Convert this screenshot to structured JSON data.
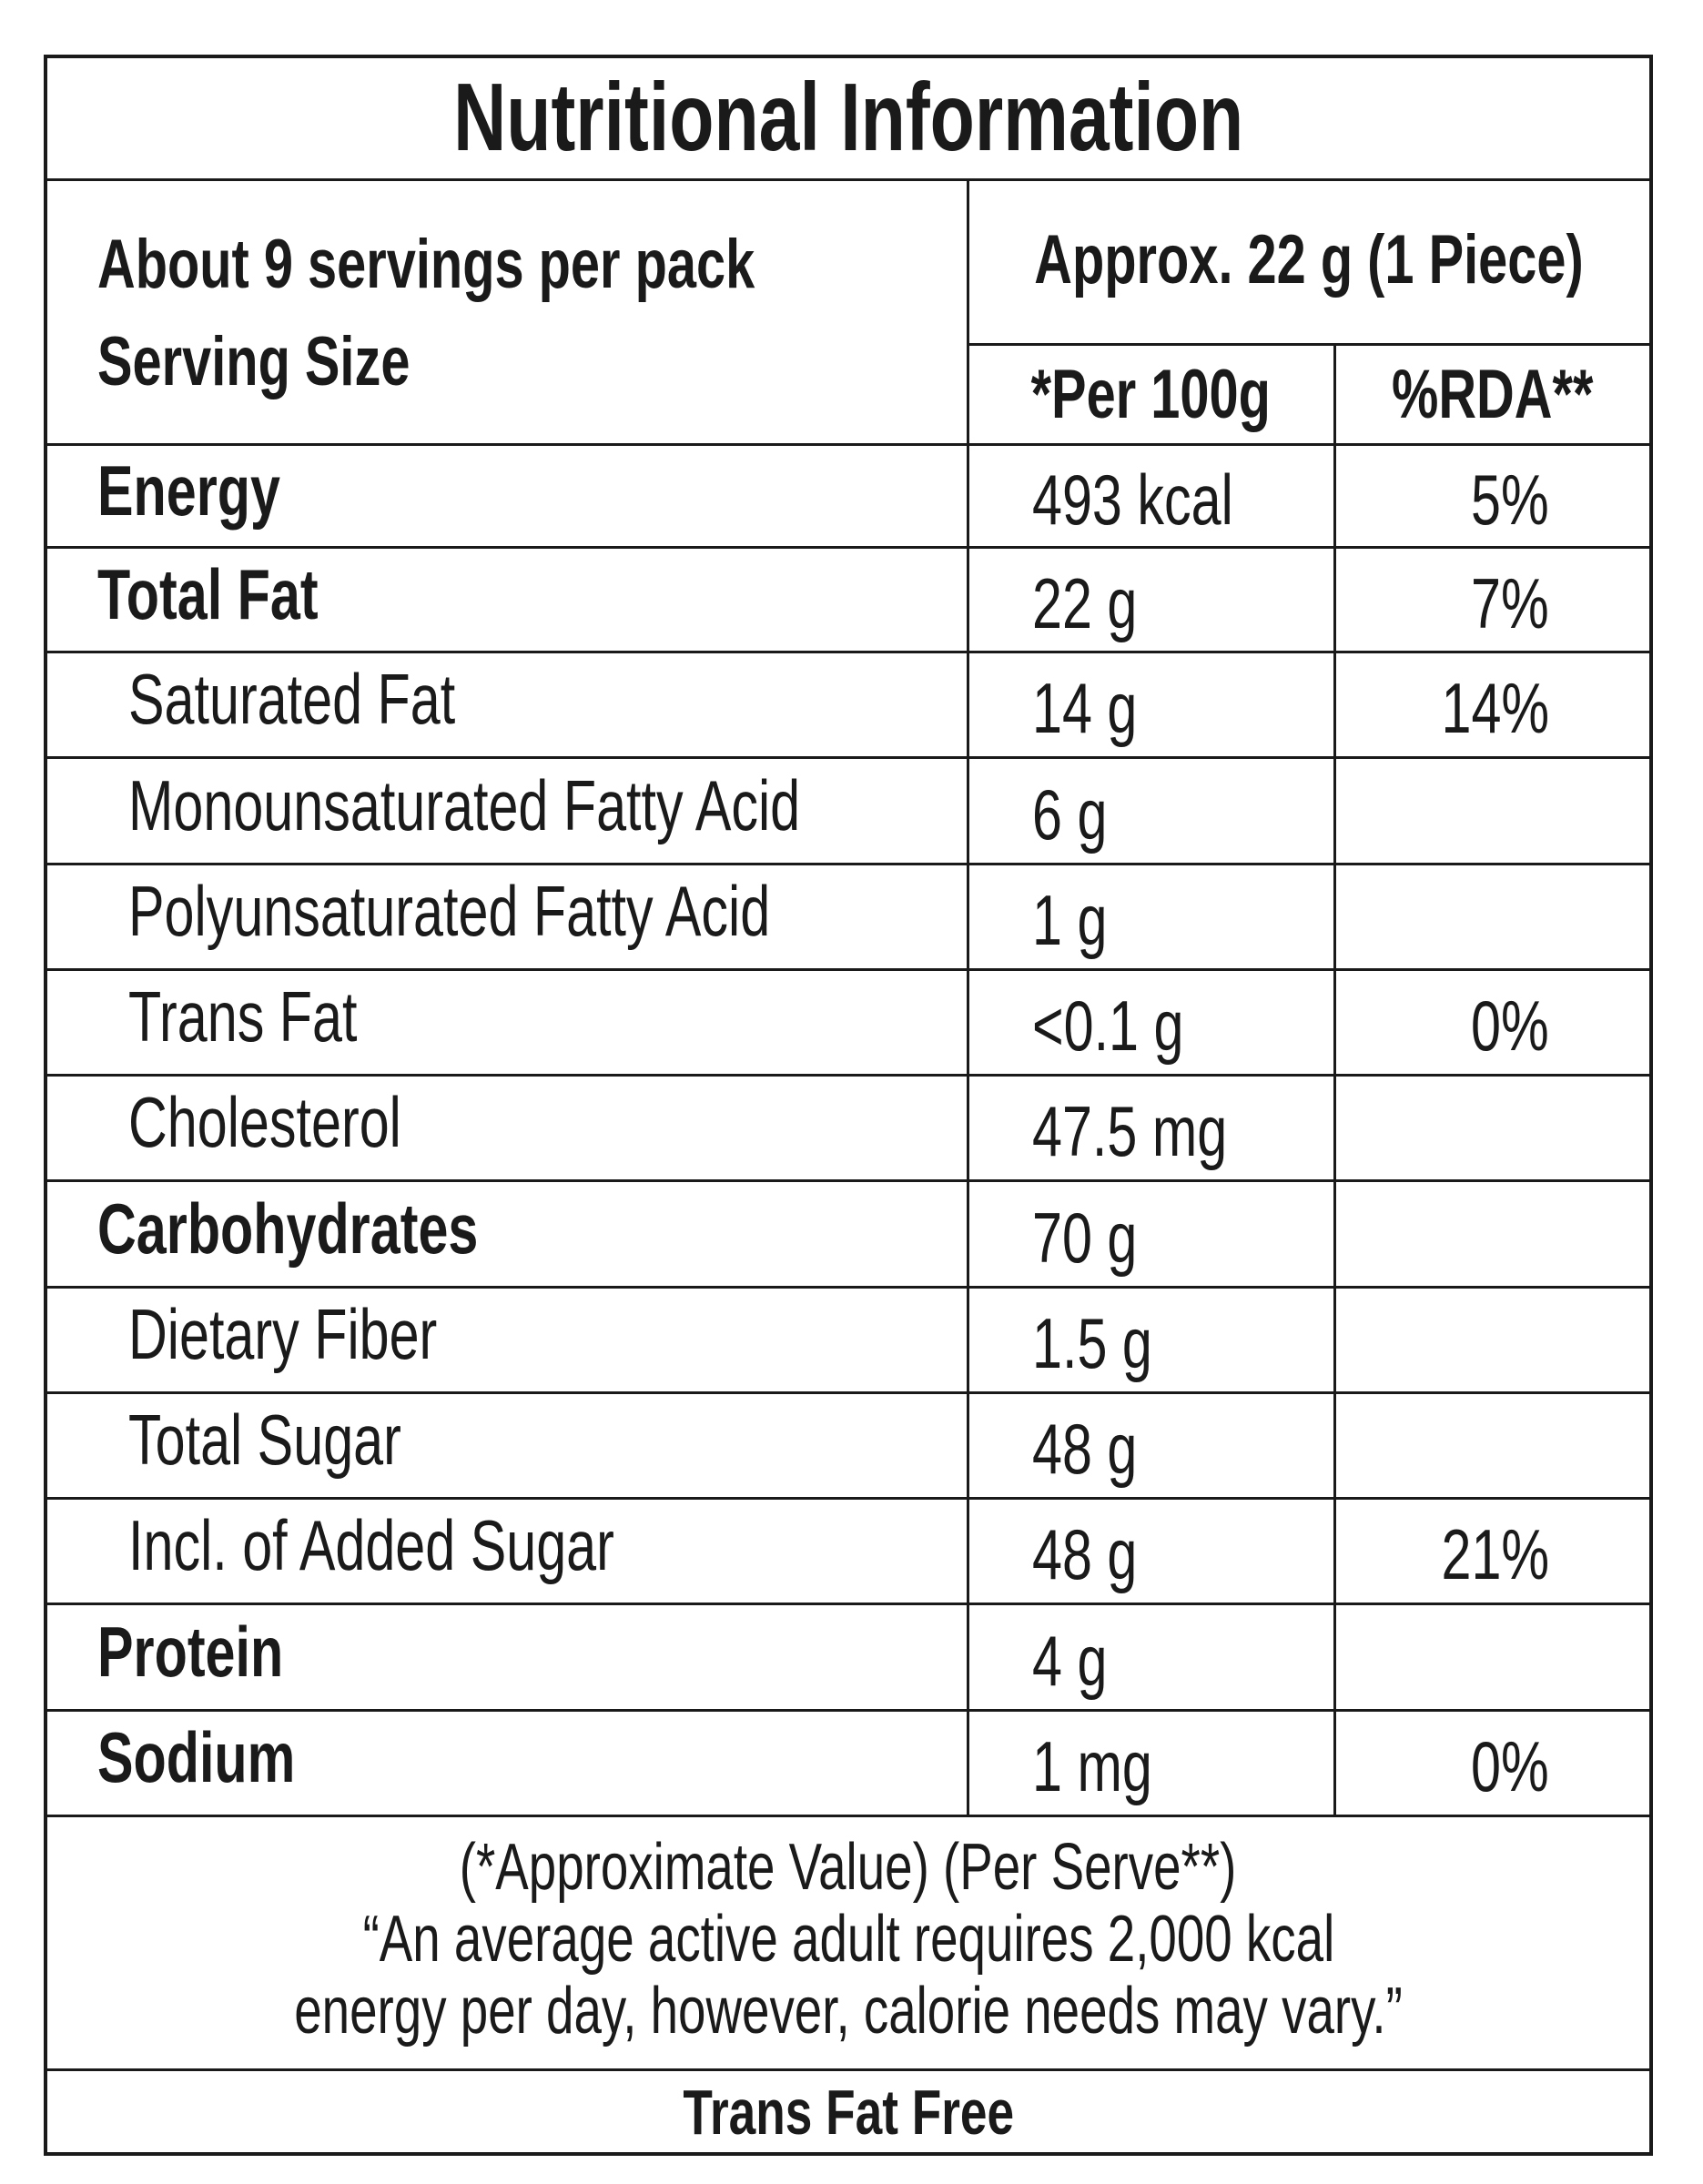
{
  "title": "Nutritional Information",
  "header": {
    "servings": "About 9 servings per pack",
    "serving_size_label": "Serving Size",
    "serving_size": "Approx. 22 g (1 Piece)",
    "per_100g": "*Per 100g",
    "rda": "%RDA**"
  },
  "rows": [
    {
      "nutrient": "Energy",
      "per_100g": "493 kcal",
      "rda": "5%",
      "bold": true
    },
    {
      "nutrient": "Total Fat",
      "per_100g": "22 g",
      "rda": "7%",
      "bold": true
    },
    {
      "nutrient": "Saturated Fat",
      "per_100g": "14 g",
      "rda": "14%",
      "indent": true
    },
    {
      "nutrient": "Monounsaturated Fatty Acid",
      "per_100g": "6 g",
      "indent": true
    },
    {
      "nutrient": "Polyunsaturated Fatty Acid",
      "per_100g": "1 g",
      "indent": true
    },
    {
      "nutrient": "Trans Fat",
      "per_100g": "<0.1 g",
      "rda": "0%",
      "indent": true
    },
    {
      "nutrient": "Cholesterol",
      "per_100g": "47.5 mg",
      "indent": true
    },
    {
      "nutrient": "Carbohydrates",
      "per_100g": "70 g",
      "bold": true
    },
    {
      "nutrient": "Dietary Fiber",
      "per_100g": "1.5 g",
      "indent": true
    },
    {
      "nutrient": "Total Sugar",
      "per_100g": "48 g",
      "indent": true
    },
    {
      "nutrient": "Incl. of Added Sugar",
      "per_100g": "48 g",
      "rda": "21%",
      "indent": true
    },
    {
      "nutrient": "Protein",
      "per_100g": "4 g",
      "bold": true
    },
    {
      "nutrient": "Sodium",
      "per_100g": "1 mg",
      "rda": "0%",
      "bold": true
    }
  ],
  "footnote": [
    "(*Approximate Value) (Per Serve**)",
    "“An average active adult requires 2,000 kcal",
    "energy per day, however, calorie needs may vary.”"
  ],
  "footer": "Trans Fat Free"
}
